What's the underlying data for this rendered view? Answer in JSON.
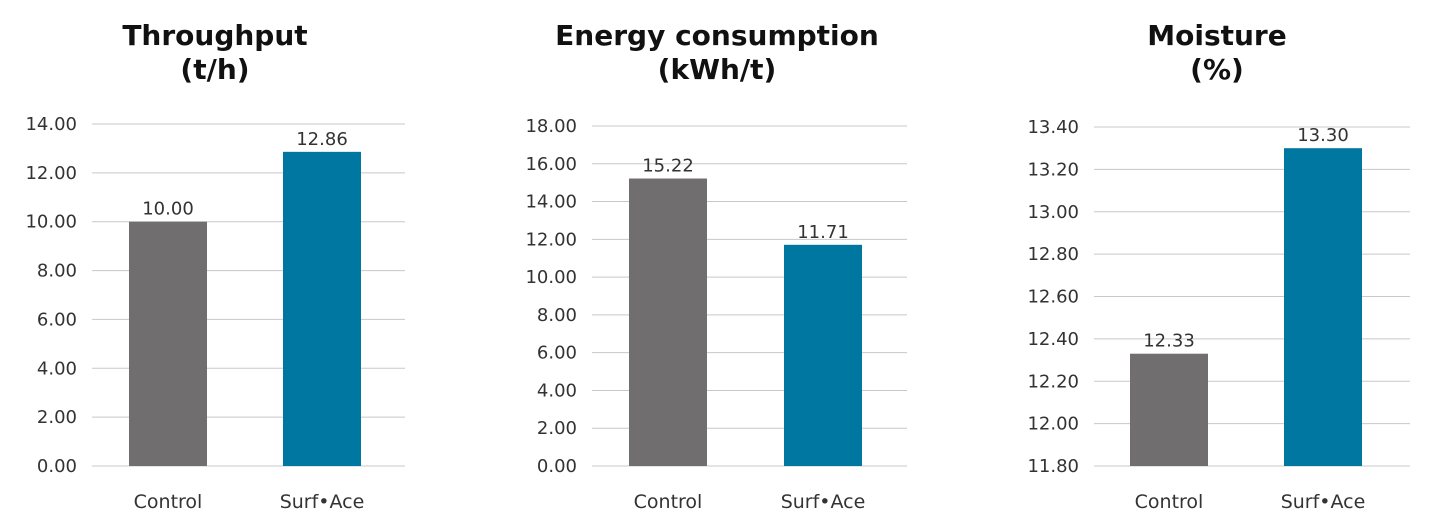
{
  "chart_data": [
    {
      "type": "bar",
      "title": "Throughput",
      "subtitle": "(t/h)",
      "categories": [
        "Control",
        "Surf•Ace"
      ],
      "values": [
        10.0,
        12.86
      ],
      "value_labels": [
        "10.00",
        "12.86"
      ],
      "ylim": [
        0,
        14
      ],
      "yticks": [
        "0.00",
        "2.00",
        "4.00",
        "6.00",
        "8.00",
        "10.00",
        "12.00",
        "14.00"
      ],
      "ytick_values": [
        0,
        2,
        4,
        6,
        8,
        10,
        12,
        14
      ],
      "colors": [
        "#706e6f",
        "#0077a0"
      ],
      "grid": true,
      "legend": "none"
    },
    {
      "type": "bar",
      "title": "Energy consumption",
      "subtitle": "(kWh/t)",
      "categories": [
        "Control",
        "Surf•Ace"
      ],
      "values": [
        15.22,
        11.71
      ],
      "value_labels": [
        "15.22",
        "11.71"
      ],
      "ylim": [
        0,
        18
      ],
      "yticks": [
        "0.00",
        "2.00",
        "4.00",
        "6.00",
        "8.00",
        "10.00",
        "12.00",
        "14.00",
        "16.00",
        "18.00"
      ],
      "ytick_values": [
        0,
        2,
        4,
        6,
        8,
        10,
        12,
        14,
        16,
        18
      ],
      "colors": [
        "#706e6f",
        "#0077a0"
      ],
      "grid": true,
      "legend": "none"
    },
    {
      "type": "bar",
      "title": "Moisture",
      "subtitle": "(%)",
      "categories": [
        "Control",
        "Surf•Ace"
      ],
      "values": [
        12.33,
        13.3
      ],
      "value_labels": [
        "12.33",
        "13.30"
      ],
      "ylim": [
        11.8,
        13.4
      ],
      "yticks": [
        "11.80",
        "12.00",
        "12.20",
        "12.40",
        "12.60",
        "12.80",
        "13.00",
        "13.20",
        "13.40"
      ],
      "ytick_values": [
        11.8,
        12.0,
        12.2,
        12.4,
        12.6,
        12.8,
        13.0,
        13.2,
        13.4
      ],
      "colors": [
        "#706e6f",
        "#0077a0"
      ],
      "grid": true,
      "legend": "none"
    }
  ]
}
